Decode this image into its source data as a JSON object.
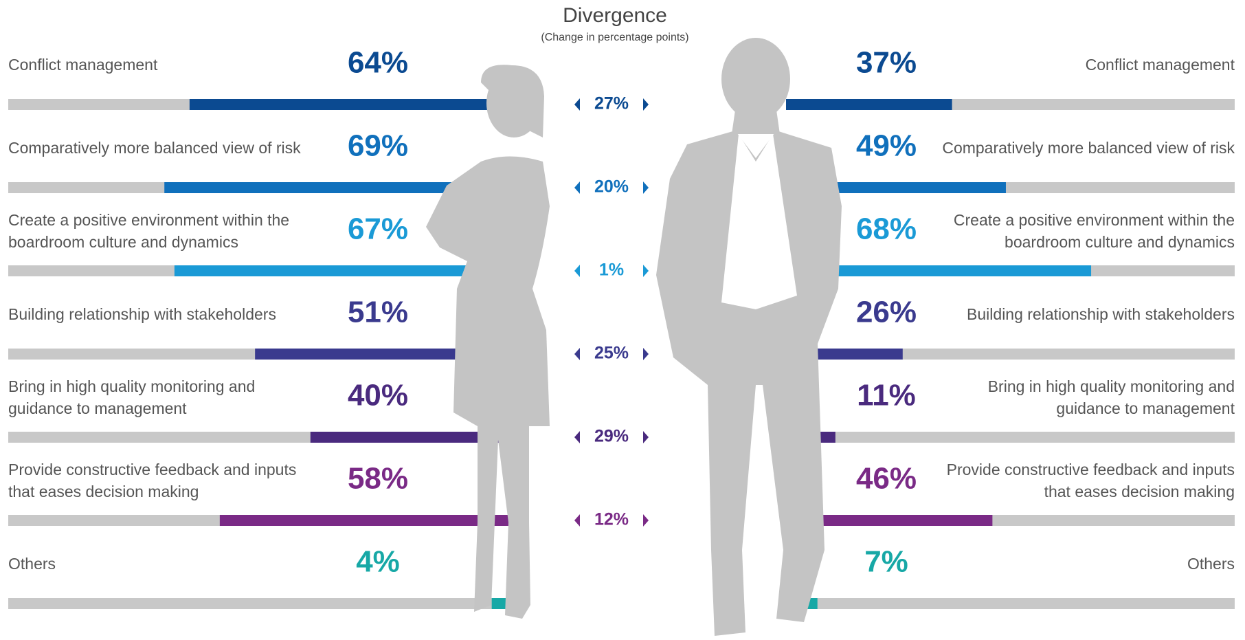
{
  "chart_data": {
    "type": "bar",
    "title": "Divergence",
    "subtitle": "(Change in percentage points)",
    "categories": [
      "Conflict management",
      "Comparatively more balanced view of risk",
      "Create a positive environment within the boardroom culture and dynamics",
      "Building relationship with stakeholders",
      "Bring in high quality monitoring and guidance to management",
      "Provide constructive feedback and inputs that eases decision making",
      "Others"
    ],
    "xlim": [
      0,
      100
    ],
    "track_color": "#c8c8c8",
    "series": [
      {
        "values": [
          64,
          69,
          67,
          51,
          40,
          58,
          4
        ],
        "value_labels": [
          "64%",
          "69%",
          "67%",
          "51%",
          "40%",
          "58%",
          "4%"
        ],
        "colors": [
          "#0b4a91",
          "#1070bc",
          "#1a9ad6",
          "#3a3a8e",
          "#4a2a7e",
          "#7a2a86",
          "#17a8a6"
        ]
      },
      {
        "values": [
          37,
          49,
          68,
          26,
          11,
          46,
          7
        ],
        "value_labels": [
          "37%",
          "49%",
          "68%",
          "26%",
          "11%",
          "46%",
          "7%"
        ],
        "colors": [
          "#0b4a91",
          "#1070bc",
          "#1a9ad6",
          "#3a3a8e",
          "#4a2a7e",
          "#7a2a86",
          "#17a8a6"
        ]
      }
    ],
    "divergence": {
      "values": [
        27,
        20,
        1,
        25,
        29,
        12,
        null
      ],
      "value_labels": [
        "27%",
        "20%",
        "1%",
        "25%",
        "29%",
        "12%",
        null
      ],
      "colors": [
        "#0b4a91",
        "#1070bc",
        "#1a9ad6",
        "#3a3a8e",
        "#4a2a7e",
        "#7a2a86",
        "#17a8a6"
      ]
    }
  }
}
